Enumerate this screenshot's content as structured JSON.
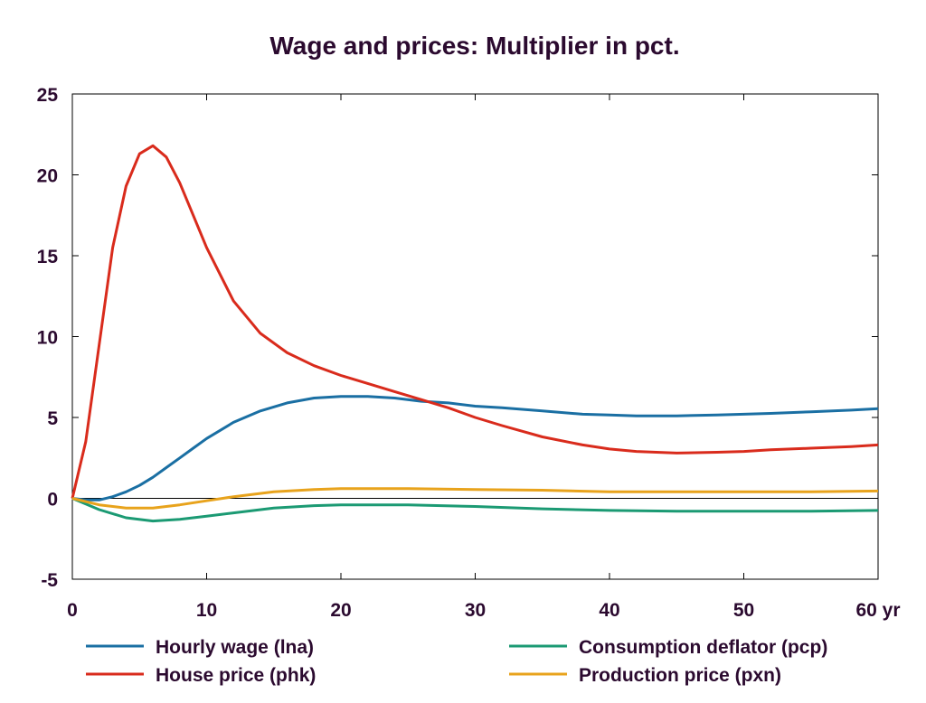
{
  "chart_data": {
    "type": "line",
    "title": "Wage and prices: Multiplier in pct.",
    "x_unit_label": "yr",
    "xlim": [
      0,
      60
    ],
    "ylim": [
      -5,
      25
    ],
    "x_ticks": [
      0,
      10,
      20,
      30,
      40,
      50,
      60
    ],
    "y_ticks": [
      25,
      20,
      15,
      10,
      5,
      0,
      -5
    ],
    "grid": false,
    "zero_line": true,
    "legend_position": "bottom",
    "series": [
      {
        "name": "Hourly wage (lna)",
        "color": "#1a6fa3",
        "x": [
          0,
          1,
          2,
          3,
          4,
          5,
          6,
          7,
          8,
          9,
          10,
          12,
          14,
          16,
          18,
          20,
          22,
          24,
          26,
          28,
          30,
          32,
          35,
          38,
          40,
          42,
          45,
          48,
          50,
          52,
          55,
          58,
          60
        ],
        "y": [
          0,
          -0.1,
          -0.1,
          0.1,
          0.4,
          0.8,
          1.3,
          1.9,
          2.5,
          3.1,
          3.7,
          4.7,
          5.4,
          5.9,
          6.2,
          6.3,
          6.3,
          6.2,
          6.0,
          5.9,
          5.7,
          5.6,
          5.4,
          5.2,
          5.15,
          5.1,
          5.1,
          5.15,
          5.2,
          5.25,
          5.35,
          5.45,
          5.55
        ]
      },
      {
        "name": "House price (phk)",
        "color": "#d92b1c",
        "x": [
          0,
          1,
          2,
          3,
          4,
          5,
          6,
          7,
          8,
          9,
          10,
          12,
          14,
          16,
          18,
          20,
          22,
          24,
          26,
          28,
          30,
          32,
          35,
          38,
          40,
          42,
          45,
          48,
          50,
          52,
          55,
          58,
          60
        ],
        "y": [
          0,
          3.5,
          9.5,
          15.5,
          19.3,
          21.3,
          21.8,
          21.1,
          19.5,
          17.5,
          15.5,
          12.2,
          10.2,
          9.0,
          8.2,
          7.6,
          7.1,
          6.6,
          6.1,
          5.6,
          5.0,
          4.5,
          3.8,
          3.3,
          3.05,
          2.9,
          2.8,
          2.85,
          2.9,
          3.0,
          3.1,
          3.2,
          3.3
        ]
      },
      {
        "name": "Consumption deflator (pcp)",
        "color": "#1b9a73",
        "x": [
          0,
          2,
          4,
          6,
          8,
          10,
          12,
          15,
          18,
          20,
          25,
          30,
          35,
          40,
          45,
          50,
          55,
          60
        ],
        "y": [
          0,
          -0.7,
          -1.2,
          -1.4,
          -1.3,
          -1.1,
          -0.9,
          -0.6,
          -0.45,
          -0.4,
          -0.4,
          -0.5,
          -0.65,
          -0.75,
          -0.8,
          -0.8,
          -0.8,
          -0.75
        ]
      },
      {
        "name": "Production price (pxn)",
        "color": "#e8a31c",
        "x": [
          0,
          2,
          4,
          6,
          8,
          10,
          12,
          15,
          18,
          20,
          25,
          30,
          35,
          40,
          45,
          50,
          55,
          60
        ],
        "y": [
          0,
          -0.4,
          -0.6,
          -0.6,
          -0.4,
          -0.15,
          0.1,
          0.4,
          0.55,
          0.6,
          0.6,
          0.55,
          0.5,
          0.4,
          0.4,
          0.4,
          0.4,
          0.45
        ]
      }
    ]
  }
}
